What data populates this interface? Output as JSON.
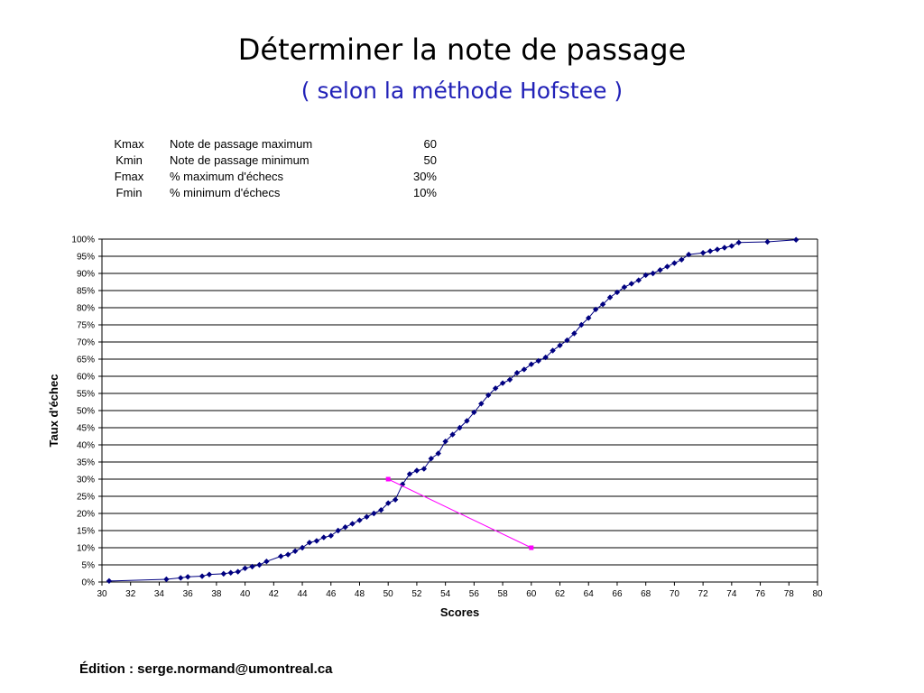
{
  "slide": {
    "title": "Déterminer la note de passage",
    "subtitle": "( selon la méthode Hofstee )",
    "footer": "Édition : serge.normand@umontreal.ca"
  },
  "parameters": [
    {
      "abbr": "Kmax",
      "label": "Note de passage maximum",
      "value": "60"
    },
    {
      "abbr": "Kmin",
      "label": "Note de passage minimum",
      "value": "50"
    },
    {
      "abbr": "Fmax",
      "label": "% maximum d'échecs",
      "value": "30%"
    },
    {
      "abbr": "Fmin",
      "label": "% minimum d'échecs",
      "value": "10%"
    }
  ],
  "chart_data": {
    "type": "line",
    "xlabel": "Scores",
    "ylabel": "Taux d'échec",
    "xlim": [
      30,
      80
    ],
    "ylim": [
      0,
      100
    ],
    "x_ticks": [
      30,
      32,
      34,
      36,
      38,
      40,
      42,
      44,
      46,
      48,
      50,
      52,
      54,
      56,
      58,
      60,
      62,
      64,
      66,
      68,
      70,
      72,
      74,
      76,
      78,
      80
    ],
    "y_ticks": [
      "0%",
      "5%",
      "10%",
      "15%",
      "20%",
      "25%",
      "30%",
      "35%",
      "40%",
      "45%",
      "50%",
      "55%",
      "60%",
      "65%",
      "70%",
      "75%",
      "80%",
      "85%",
      "90%",
      "95%",
      "100%"
    ],
    "grid": "horizontal",
    "legend": "none",
    "series": [
      {
        "color": "#000080",
        "marker": "diamond",
        "x": [
          30.5,
          34.5,
          35.5,
          36,
          37,
          37.5,
          38.5,
          39,
          39.5,
          40,
          40.5,
          41,
          41.5,
          42.5,
          43,
          43.5,
          44,
          44.5,
          45,
          45.5,
          46,
          46.5,
          47,
          47.5,
          48,
          48.5,
          49,
          49.5,
          50,
          50.5,
          51,
          51.5,
          52,
          52.5,
          53,
          53.5,
          54,
          54.5,
          55,
          55.5,
          56,
          56.5,
          57,
          57.5,
          58,
          58.5,
          59,
          59.5,
          60,
          60.5,
          61,
          61.5,
          62,
          62.5,
          63,
          63.5,
          64,
          64.5,
          65,
          65.5,
          66,
          66.5,
          67,
          67.5,
          68,
          68.5,
          69,
          69.5,
          70,
          70.5,
          71,
          72,
          72.5,
          73,
          73.5,
          74,
          74.5,
          76.5,
          78.5
        ],
        "y": [
          0.3,
          0.8,
          1.2,
          1.5,
          1.7,
          2.2,
          2.4,
          2.7,
          3,
          4,
          4.5,
          5,
          6,
          7.5,
          8,
          9,
          10,
          11.5,
          12,
          13,
          13.5,
          15,
          16,
          17,
          18,
          19,
          20,
          21,
          23,
          24,
          28.5,
          31.5,
          32.5,
          33,
          36,
          37.5,
          41,
          43,
          45,
          47,
          49.5,
          52,
          54.5,
          56.5,
          58,
          59,
          61,
          62,
          63.5,
          64.5,
          65.5,
          67.5,
          69,
          70.5,
          72.5,
          75,
          77,
          79.5,
          81,
          83,
          84.5,
          86,
          87,
          88,
          89.5,
          90,
          91,
          92,
          93,
          94,
          95.5,
          96,
          96.5,
          97,
          97.5,
          98,
          99,
          99.2,
          99.8
        ]
      },
      {
        "color": "#ff00ff",
        "marker": "square",
        "x": [
          50,
          60
        ],
        "y": [
          30,
          10
        ]
      }
    ]
  }
}
